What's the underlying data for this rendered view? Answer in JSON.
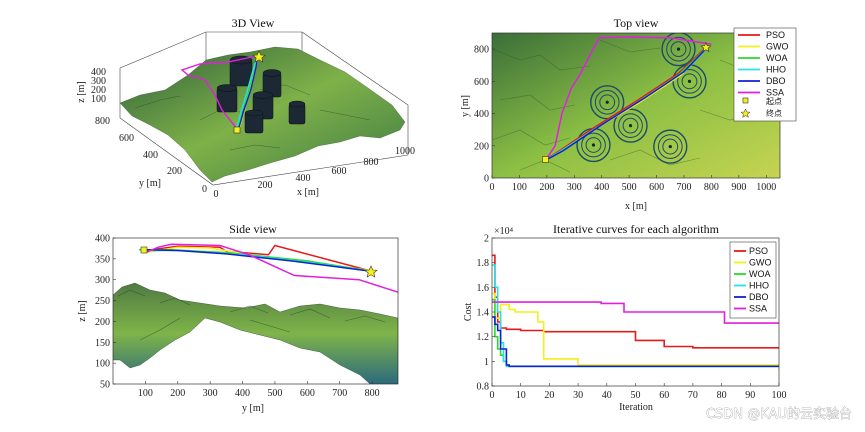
{
  "watermark": "CSDN @KAU的云实验台",
  "colors": {
    "PSO": "#e8191a",
    "GWO": "#f5ef1a",
    "WOA": "#2bd92b",
    "HHO": "#22e3e8",
    "DBO": "#1020d4",
    "SSA": "#e21ee0"
  },
  "icons": {
    "start": "square-marker-icon",
    "end": "star-marker-icon"
  },
  "chart_data": [
    {
      "id": "view3d",
      "type": "line",
      "title": "3D View",
      "xlabel": "x [m]",
      "ylabel": "y [m]",
      "zlabel": "z [m]",
      "xticks": [
        "0",
        "200",
        "400",
        "600",
        "800",
        "1000"
      ],
      "yticks": [
        "0",
        "200",
        "400",
        "600",
        "800"
      ],
      "zticks": [
        "100",
        "200",
        "300",
        "400"
      ]
    },
    {
      "id": "topview",
      "type": "line",
      "title": "Top view",
      "xlabel": "x [m]",
      "ylabel": "y [m]",
      "xlim": [
        0,
        1050
      ],
      "ylim": [
        0,
        900
      ],
      "xticks": [
        0,
        100,
        200,
        300,
        400,
        500,
        600,
        700,
        800,
        900,
        1000
      ],
      "yticks": [
        0,
        200,
        400,
        600,
        800
      ],
      "threats": [
        {
          "x": 680,
          "y": 800,
          "r": 60
        },
        {
          "x": 720,
          "y": 600,
          "r": 60
        },
        {
          "x": 420,
          "y": 470,
          "r": 60
        },
        {
          "x": 505,
          "y": 325,
          "r": 60
        },
        {
          "x": 370,
          "y": 205,
          "r": 60
        },
        {
          "x": 650,
          "y": 195,
          "r": 60
        }
      ],
      "legend": {
        "entries": [
          "PSO",
          "GWO",
          "WOA",
          "HHO",
          "DBO",
          "SSA"
        ],
        "start_label": "起点",
        "end_label": "终点",
        "placement": "top-right"
      },
      "series": [
        {
          "name": "PSO",
          "points": [
            [
              195,
              115
            ],
            [
              230,
              150
            ],
            [
              360,
              300
            ],
            [
              520,
              470
            ],
            [
              680,
              650
            ],
            [
              780,
              810
            ]
          ]
        },
        {
          "name": "GWO",
          "points": [
            [
              195,
              110
            ],
            [
              240,
              155
            ],
            [
              380,
              310
            ],
            [
              530,
              460
            ],
            [
              690,
              640
            ],
            [
              790,
              820
            ]
          ]
        },
        {
          "name": "WOA",
          "points": [
            [
              195,
              110
            ],
            [
              235,
              150
            ],
            [
              370,
              300
            ],
            [
              525,
              465
            ],
            [
              680,
              640
            ],
            [
              790,
              820
            ]
          ]
        },
        {
          "name": "HHO",
          "points": [
            [
              195,
              112
            ],
            [
              250,
              165
            ],
            [
              390,
              320
            ],
            [
              540,
              480
            ],
            [
              700,
              660
            ],
            [
              790,
              815
            ]
          ]
        },
        {
          "name": "DBO",
          "points": [
            [
              195,
              110
            ],
            [
              260,
              170
            ],
            [
              400,
              330
            ],
            [
              560,
              500
            ],
            [
              700,
              660
            ],
            [
              790,
              820
            ]
          ]
        },
        {
          "name": "SSA",
          "points": [
            [
              195,
              110
            ],
            [
              230,
              200
            ],
            [
              255,
              400
            ],
            [
              290,
              560
            ],
            [
              320,
              640
            ],
            [
              390,
              870
            ],
            [
              500,
              875
            ],
            [
              650,
              870
            ],
            [
              800,
              830
            ]
          ]
        }
      ]
    },
    {
      "id": "sideview",
      "type": "line",
      "title": "Side view",
      "xlabel": "y [m]",
      "ylabel": "z [m]",
      "xlim": [
        0,
        880
      ],
      "ylim": [
        50,
        400
      ],
      "xticks": [
        100,
        200,
        300,
        400,
        500,
        600,
        700,
        800
      ],
      "yticks": [
        50,
        100,
        150,
        200,
        250,
        300,
        350,
        400
      ],
      "series": [
        {
          "name": "PSO",
          "points": [
            [
              100,
              368
            ],
            [
              130,
              373
            ],
            [
              200,
              380
            ],
            [
              330,
              378
            ],
            [
              350,
              368
            ],
            [
              480,
              360
            ],
            [
              500,
              382
            ],
            [
              800,
              320
            ]
          ]
        },
        {
          "name": "GWO",
          "points": [
            [
              100,
              365
            ],
            [
              200,
              378
            ],
            [
              300,
              376
            ],
            [
              500,
              350
            ],
            [
              800,
              322
            ]
          ]
        },
        {
          "name": "WOA",
          "points": [
            [
              80,
              372
            ],
            [
              180,
              372
            ],
            [
              350,
              365
            ],
            [
              600,
              345
            ],
            [
              800,
              320
            ]
          ]
        },
        {
          "name": "HHO",
          "points": [
            [
              90,
              370
            ],
            [
              200,
              370
            ],
            [
              400,
              360
            ],
            [
              600,
              342
            ],
            [
              800,
              320
            ]
          ]
        },
        {
          "name": "DBO",
          "points": [
            [
              100,
              372
            ],
            [
              200,
              370
            ],
            [
              350,
              362
            ],
            [
              550,
              345
            ],
            [
              800,
              320
            ]
          ]
        },
        {
          "name": "SSA",
          "points": [
            [
              100,
              365
            ],
            [
              140,
              378
            ],
            [
              180,
              385
            ],
            [
              330,
              382
            ],
            [
              420,
              360
            ],
            [
              560,
              310
            ],
            [
              760,
              300
            ],
            [
              880,
              270
            ]
          ]
        }
      ]
    },
    {
      "id": "iterative",
      "type": "line",
      "title": "Iterative curves for each algorithm",
      "xlabel": "Iteration",
      "ylabel": "Cost",
      "exponent_label": "×10⁴",
      "xlim": [
        0,
        100
      ],
      "ylim": [
        0.8,
        2.0
      ],
      "xticks": [
        0,
        10,
        20,
        30,
        40,
        50,
        60,
        70,
        80,
        90,
        100
      ],
      "yticks": [
        0.8,
        1,
        1.2,
        1.4,
        1.6,
        1.8,
        2
      ],
      "ytick_labels": [
        "0.8",
        "1",
        "1.2",
        "1.4",
        "1.6",
        "1.8",
        "2"
      ],
      "legend": {
        "entries": [
          "PSO",
          "GWO",
          "WOA",
          "HHO",
          "DBO",
          "SSA"
        ],
        "placement": "top-right"
      },
      "series": [
        {
          "name": "PSO",
          "x": [
            0,
            1,
            2,
            3,
            5,
            10,
            18,
            50,
            60,
            70,
            100
          ],
          "y": [
            1.86,
            1.52,
            1.32,
            1.27,
            1.26,
            1.25,
            1.24,
            1.17,
            1.12,
            1.11,
            1.1
          ]
        },
        {
          "name": "GWO",
          "x": [
            0,
            1,
            3,
            6,
            8,
            16,
            18,
            30,
            100
          ],
          "y": [
            1.55,
            1.35,
            1.46,
            1.42,
            1.4,
            1.32,
            1.02,
            0.97,
            0.93
          ]
        },
        {
          "name": "WOA",
          "x": [
            0,
            1,
            2,
            3,
            4,
            5,
            6,
            100
          ],
          "y": [
            1.5,
            1.2,
            1.1,
            1.05,
            1.0,
            0.97,
            0.96,
            0.96
          ]
        },
        {
          "name": "HHO",
          "x": [
            0,
            1,
            2,
            3,
            4,
            5,
            100
          ],
          "y": [
            1.78,
            1.6,
            1.4,
            1.15,
            1.0,
            0.96,
            0.96
          ]
        },
        {
          "name": "DBO",
          "x": [
            0,
            1,
            2,
            3,
            5,
            6,
            100
          ],
          "y": [
            1.36,
            1.3,
            1.25,
            1.1,
            0.97,
            0.96,
            0.96
          ]
        },
        {
          "name": "SSA",
          "x": [
            0,
            10,
            38,
            46,
            78,
            81,
            100
          ],
          "y": [
            1.48,
            1.48,
            1.47,
            1.4,
            1.4,
            1.31,
            1.31
          ]
        }
      ]
    }
  ]
}
